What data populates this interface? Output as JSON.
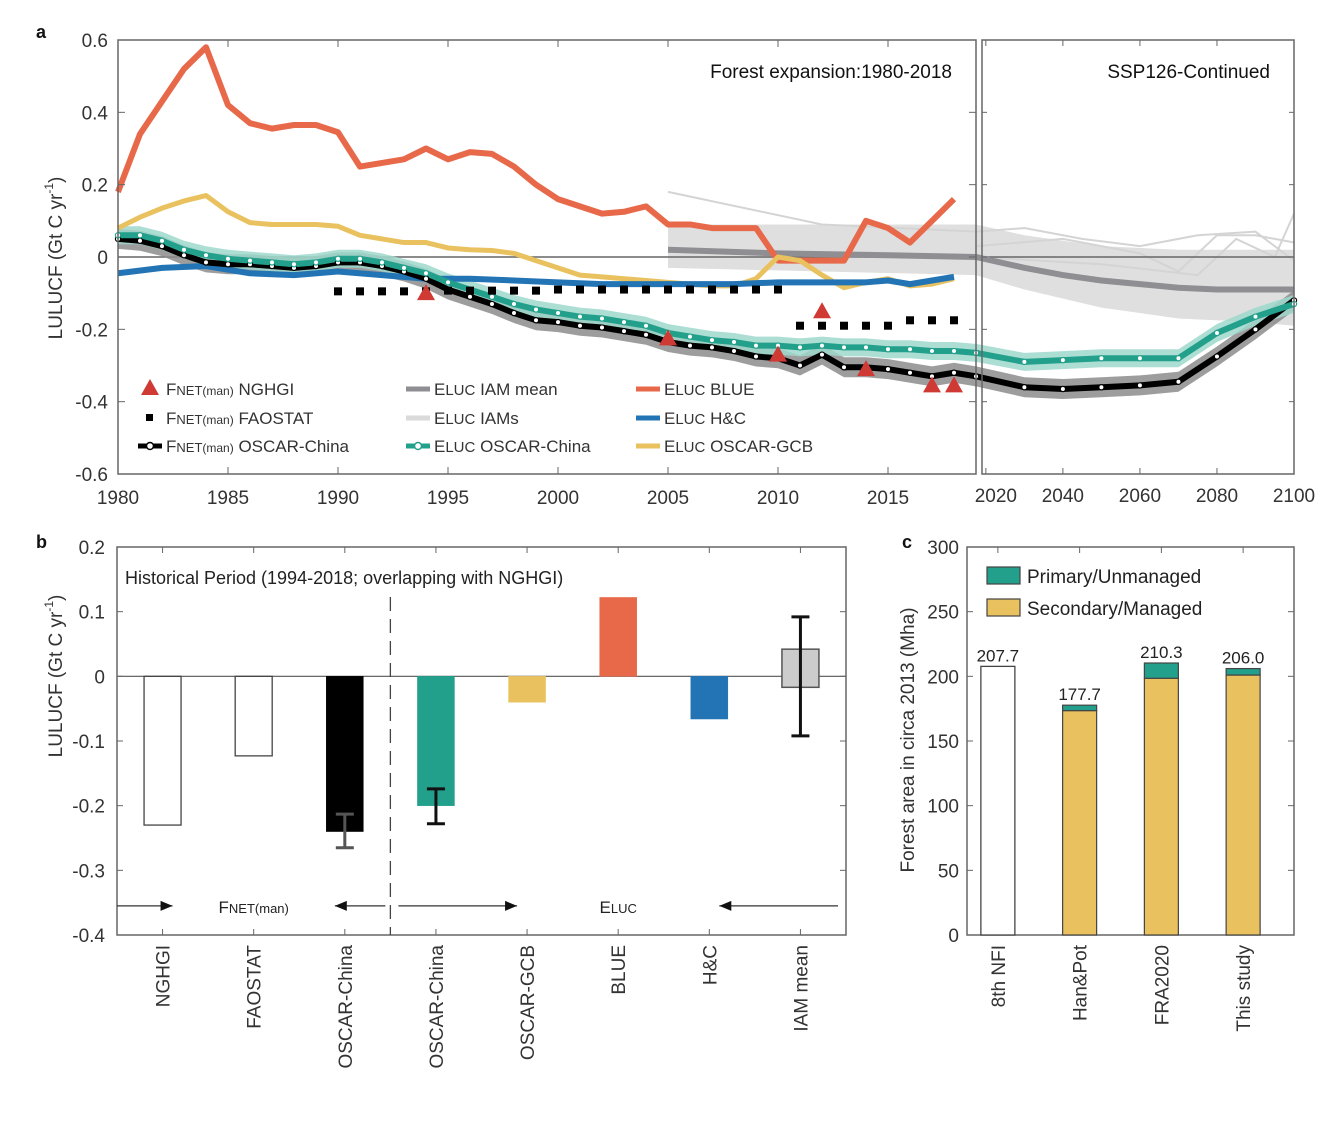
{
  "chart_data": [
    {
      "panel": "a",
      "type": "line",
      "ylabel": "LULUCF (Gt C yr-1)",
      "ylabel_parts": {
        "main": "LULUCF (Gt C yr",
        "sup": "-1",
        "close": ")"
      },
      "ylim": [
        -0.6,
        0.6
      ],
      "yticks": [
        "0.6",
        "0.4",
        "0.2",
        "0",
        "-0.2",
        "-0.4",
        "-0.6"
      ],
      "ytick_values": [
        0.6,
        0.4,
        0.2,
        0,
        -0.2,
        -0.4,
        -0.6
      ],
      "left_xlim": [
        1980,
        2019
      ],
      "left_xticks": [
        "1980",
        "1985",
        "1990",
        "1995",
        "2000",
        "2005",
        "2010",
        "2015"
      ],
      "left_xtick_values": [
        1980,
        1985,
        1990,
        1995,
        2000,
        2005,
        2010,
        2015
      ],
      "right_xlim": [
        2019,
        2100
      ],
      "right_xticks": [
        "2020",
        "2040",
        "2060",
        "2080",
        "2100"
      ],
      "right_xtick_values": [
        2020,
        2040,
        2060,
        2080,
        2100
      ],
      "annotations": {
        "left": "Forest expansion:1980-2018",
        "right": "SSP126-Continued"
      },
      "colors": {
        "blue_red": "#e8694a",
        "hc_blue": "#2274b5",
        "gcb_yellow": "#e9c25f",
        "oscar_teal": "#23a08b",
        "oscar_teal_band": "#9fd8cc",
        "oscar_black": "#000000",
        "oscar_black_band": "#8c8c8c",
        "iam_mean": "#8e8e93",
        "iam_band": "#dcdcdc",
        "nghgi": "#d03a35",
        "faostat": "#000000"
      },
      "legend": [
        {
          "key": "nghgi",
          "marker": "triangle",
          "prefix": "F",
          "sub": "NET(man)",
          "label": "NGHGI"
        },
        {
          "key": "faostat",
          "marker": "square",
          "prefix": "F",
          "sub": "NET(man)",
          "label": "FAOSTAT"
        },
        {
          "key": "fnet_oscar",
          "marker": "line-circle-black",
          "prefix": "F",
          "sub": "NET(man)",
          "label": "OSCAR-China"
        },
        {
          "key": "iam_mean",
          "marker": "line-gray",
          "prefix": "E",
          "sub": "LUC",
          "label": "IAM mean"
        },
        {
          "key": "iams",
          "marker": "line-lightgray",
          "prefix": "E",
          "sub": "LUC",
          "label": "IAMs"
        },
        {
          "key": "eluc_oscar",
          "marker": "line-circle-teal",
          "prefix": "E",
          "sub": "LUC",
          "label": "OSCAR-China"
        },
        {
          "key": "blue",
          "marker": "line-red",
          "prefix": "E",
          "sub": "LUC",
          "label": "BLUE"
        },
        {
          "key": "hc",
          "marker": "line-blue",
          "prefix": "E",
          "sub": "LUC",
          "label": "H&C"
        },
        {
          "key": "gcb",
          "marker": "line-yellow",
          "prefix": "E",
          "sub": "LUC",
          "label": "OSCAR-GCB"
        }
      ],
      "series": {
        "blue": {
          "x": [
            1980,
            1981,
            1982,
            1983,
            1984,
            1985,
            1986,
            1987,
            1988,
            1989,
            1990,
            1991,
            1992,
            1993,
            1994,
            1995,
            1996,
            1997,
            1998,
            1999,
            2000,
            2001,
            2002,
            2003,
            2004,
            2005,
            2006,
            2007,
            2008,
            2009,
            2010,
            2011,
            2012,
            2013,
            2014,
            2015,
            2016,
            2017,
            2018
          ],
          "y": [
            0.18,
            0.34,
            0.43,
            0.52,
            0.58,
            0.42,
            0.37,
            0.355,
            0.365,
            0.365,
            0.345,
            0.25,
            0.26,
            0.27,
            0.3,
            0.27,
            0.29,
            0.285,
            0.25,
            0.2,
            0.16,
            0.14,
            0.12,
            0.125,
            0.14,
            0.09,
            0.09,
            0.08,
            0.08,
            0.08,
            -0.01,
            -0.01,
            -0.01,
            -0.01,
            0.1,
            0.08,
            0.04,
            0.1,
            0.16
          ]
        },
        "hc": {
          "x": [
            1980,
            1982,
            1984,
            1986,
            1988,
            1990,
            1992,
            1994,
            1996,
            1998,
            2000,
            2002,
            2004,
            2006,
            2008,
            2010,
            2012,
            2014,
            2015,
            2016,
            2018
          ],
          "y": [
            -0.045,
            -0.03,
            -0.025,
            -0.045,
            -0.05,
            -0.04,
            -0.05,
            -0.06,
            -0.06,
            -0.065,
            -0.07,
            -0.075,
            -0.075,
            -0.075,
            -0.075,
            -0.07,
            -0.07,
            -0.07,
            -0.065,
            -0.075,
            -0.055
          ]
        },
        "gcb": {
          "x": [
            1980,
            1981,
            1982,
            1983,
            1984,
            1985,
            1986,
            1987,
            1988,
            1989,
            1990,
            1991,
            1992,
            1993,
            1994,
            1995,
            1996,
            1997,
            1998,
            1999,
            2000,
            2001,
            2002,
            2003,
            2004,
            2005,
            2006,
            2007,
            2008,
            2009,
            2010,
            2011,
            2012,
            2013,
            2014,
            2015,
            2016,
            2017,
            2018
          ],
          "y": [
            0.08,
            0.11,
            0.135,
            0.155,
            0.17,
            0.125,
            0.095,
            0.09,
            0.09,
            0.09,
            0.085,
            0.06,
            0.05,
            0.04,
            0.04,
            0.025,
            0.02,
            0.018,
            0.01,
            -0.01,
            -0.03,
            -0.05,
            -0.055,
            -0.06,
            -0.065,
            -0.07,
            -0.075,
            -0.08,
            -0.08,
            -0.06,
            0.0,
            -0.01,
            -0.05,
            -0.085,
            -0.07,
            -0.06,
            -0.08,
            -0.075,
            -0.06
          ]
        },
        "eluc_oscar": {
          "x": [
            1980,
            1981,
            1982,
            1983,
            1984,
            1985,
            1986,
            1987,
            1988,
            1989,
            1990,
            1991,
            1992,
            1993,
            1994,
            1995,
            1996,
            1997,
            1998,
            1999,
            2000,
            2001,
            2002,
            2003,
            2004,
            2005,
            2006,
            2007,
            2008,
            2009,
            2010,
            2011,
            2012,
            2013,
            2014,
            2015,
            2016,
            2017,
            2018,
            2019,
            2030,
            2040,
            2050,
            2060,
            2070,
            2080,
            2090,
            2100
          ],
          "y": [
            0.06,
            0.06,
            0.045,
            0.02,
            0.005,
            -0.005,
            -0.01,
            -0.015,
            -0.02,
            -0.015,
            -0.005,
            -0.005,
            -0.015,
            -0.03,
            -0.045,
            -0.07,
            -0.09,
            -0.11,
            -0.13,
            -0.145,
            -0.155,
            -0.165,
            -0.17,
            -0.18,
            -0.19,
            -0.21,
            -0.22,
            -0.23,
            -0.235,
            -0.245,
            -0.245,
            -0.25,
            -0.245,
            -0.25,
            -0.25,
            -0.255,
            -0.255,
            -0.26,
            -0.26,
            -0.265,
            -0.29,
            -0.285,
            -0.28,
            -0.28,
            -0.28,
            -0.21,
            -0.165,
            -0.13
          ]
        },
        "fnet_oscar": {
          "x": [
            1980,
            1981,
            1982,
            1983,
            1984,
            1985,
            1986,
            1987,
            1988,
            1989,
            1990,
            1991,
            1992,
            1993,
            1994,
            1995,
            1996,
            1997,
            1998,
            1999,
            2000,
            2001,
            2002,
            2003,
            2004,
            2005,
            2006,
            2007,
            2008,
            2009,
            2010,
            2011,
            2012,
            2013,
            2014,
            2015,
            2016,
            2017,
            2018,
            2019,
            2030,
            2040,
            2050,
            2060,
            2070,
            2080,
            2090,
            2100
          ],
          "y": [
            0.05,
            0.045,
            0.03,
            0.005,
            -0.015,
            -0.02,
            -0.02,
            -0.025,
            -0.03,
            -0.025,
            -0.015,
            -0.015,
            -0.025,
            -0.04,
            -0.06,
            -0.09,
            -0.11,
            -0.13,
            -0.155,
            -0.175,
            -0.18,
            -0.19,
            -0.195,
            -0.205,
            -0.215,
            -0.235,
            -0.245,
            -0.25,
            -0.26,
            -0.275,
            -0.28,
            -0.3,
            -0.27,
            -0.305,
            -0.305,
            -0.31,
            -0.32,
            -0.33,
            -0.32,
            -0.33,
            -0.36,
            -0.365,
            -0.36,
            -0.355,
            -0.345,
            -0.275,
            -0.2,
            -0.12
          ]
        },
        "iam_mean": {
          "x": [
            2005,
            2010,
            2015,
            2019,
            2030,
            2040,
            2050,
            2060,
            2070,
            2080,
            2090,
            2100
          ],
          "y": [
            0.02,
            0.01,
            0.005,
            0.0,
            -0.03,
            -0.05,
            -0.065,
            -0.075,
            -0.085,
            -0.09,
            -0.09,
            -0.09
          ]
        },
        "iam_band": {
          "x": [
            2005,
            2019,
            2030,
            2050,
            2070,
            2090,
            2100
          ],
          "upper": [
            0.09,
            0.09,
            0.06,
            0.03,
            0.02,
            0.02,
            0.02
          ],
          "lower": [
            -0.03,
            -0.05,
            -0.09,
            -0.14,
            -0.17,
            -0.18,
            -0.19
          ]
        },
        "nghgi": {
          "x": [
            1994,
            2005,
            2010,
            2012,
            2014,
            2017,
            2018
          ],
          "y": [
            -0.1,
            -0.225,
            -0.27,
            -0.15,
            -0.31,
            -0.355,
            -0.355
          ]
        },
        "faostat": {
          "x": [
            1990,
            1991,
            1992,
            1993,
            1994,
            1995,
            1996,
            1997,
            1998,
            1999,
            2000,
            2001,
            2002,
            2003,
            2004,
            2005,
            2006,
            2007,
            2008,
            2009,
            2010,
            2011,
            2012,
            2013,
            2014,
            2015,
            2016,
            2017,
            2018
          ],
          "y": [
            -0.095,
            -0.095,
            -0.095,
            -0.095,
            -0.095,
            -0.093,
            -0.093,
            -0.093,
            -0.093,
            -0.093,
            -0.09,
            -0.09,
            -0.09,
            -0.09,
            -0.09,
            -0.09,
            -0.09,
            -0.09,
            -0.09,
            -0.09,
            -0.09,
            -0.19,
            -0.19,
            -0.19,
            -0.19,
            -0.19,
            -0.175,
            -0.175,
            -0.175
          ]
        }
      }
    },
    {
      "panel": "b",
      "type": "bar",
      "title": "Historical Period (1994-2018; overlapping with NGHGI)",
      "ylabel": "LULUCF (Gt C yr-1)",
      "ylabel_parts": {
        "main": "LULUCF (Gt C yr",
        "sup": "-1",
        "close": ")"
      },
      "ylim": [
        -0.4,
        0.2
      ],
      "yticks": [
        "0.2",
        "0.1",
        "0",
        "-0.1",
        "-0.2",
        "-0.3",
        "-0.4"
      ],
      "ytick_values": [
        0.2,
        0.1,
        0,
        -0.1,
        -0.2,
        -0.3,
        -0.4
      ],
      "categories": [
        "NGHGI",
        "FAOSTAT",
        "OSCAR-China",
        "OSCAR-China",
        "OSCAR-GCB",
        "BLUE",
        "H&C",
        "IAM mean"
      ],
      "values": [
        -0.23,
        -0.123,
        -0.24,
        -0.2,
        -0.04,
        0.122,
        -0.066,
        0.012
      ],
      "fills": [
        "#ffffff",
        "#ffffff",
        "#000000",
        "#23a08b",
        "#e9c25f",
        "#e8694a",
        "#2274b5",
        "#cccccc"
      ],
      "error_bars": [
        null,
        null,
        [
          -0.265,
          -0.213
        ],
        [
          -0.228,
          -0.174
        ],
        null,
        null,
        null,
        [
          -0.092,
          0.092
        ]
      ],
      "box": {
        "index": 7,
        "q1": -0.017,
        "q3": 0.042
      },
      "groups": [
        {
          "prefix": "F",
          "sub": "NET(man)",
          "label": "",
          "from": 0,
          "to": 2
        },
        {
          "prefix": "E",
          "sub": "LUC",
          "label": "",
          "from": 3,
          "to": 7
        }
      ]
    },
    {
      "panel": "c",
      "type": "bar",
      "stacked": true,
      "ylabel": "Forest area in circa 2013 (Mha)",
      "ylim": [
        0,
        300
      ],
      "yticks": [
        "300",
        "250",
        "200",
        "150",
        "100",
        "50",
        "0"
      ],
      "ytick_values": [
        300,
        250,
        200,
        150,
        100,
        50,
        0
      ],
      "categories": [
        "8th NFI",
        "Han&Pot",
        "FRA2020",
        "This study"
      ],
      "series": [
        {
          "name": "Secondary/Managed",
          "color": "#e9c25f",
          "values": [
            null,
            173.5,
            198.5,
            201.0
          ]
        },
        {
          "name": "Primary/Unmanaged",
          "color": "#23a08b",
          "values": [
            null,
            4.2,
            11.8,
            5.0
          ]
        }
      ],
      "totals": [
        207.7,
        177.7,
        210.3,
        206.0
      ],
      "total_labels": [
        "207.7",
        "177.7",
        "210.3",
        "206.0"
      ],
      "unsplit_total_fill": "#ffffff",
      "legend": [
        "Primary/Unmanaged",
        "Secondary/Managed"
      ],
      "legend_placement": "top-left"
    }
  ],
  "panel_letters": {
    "a": "a",
    "b": "b",
    "c": "c"
  }
}
